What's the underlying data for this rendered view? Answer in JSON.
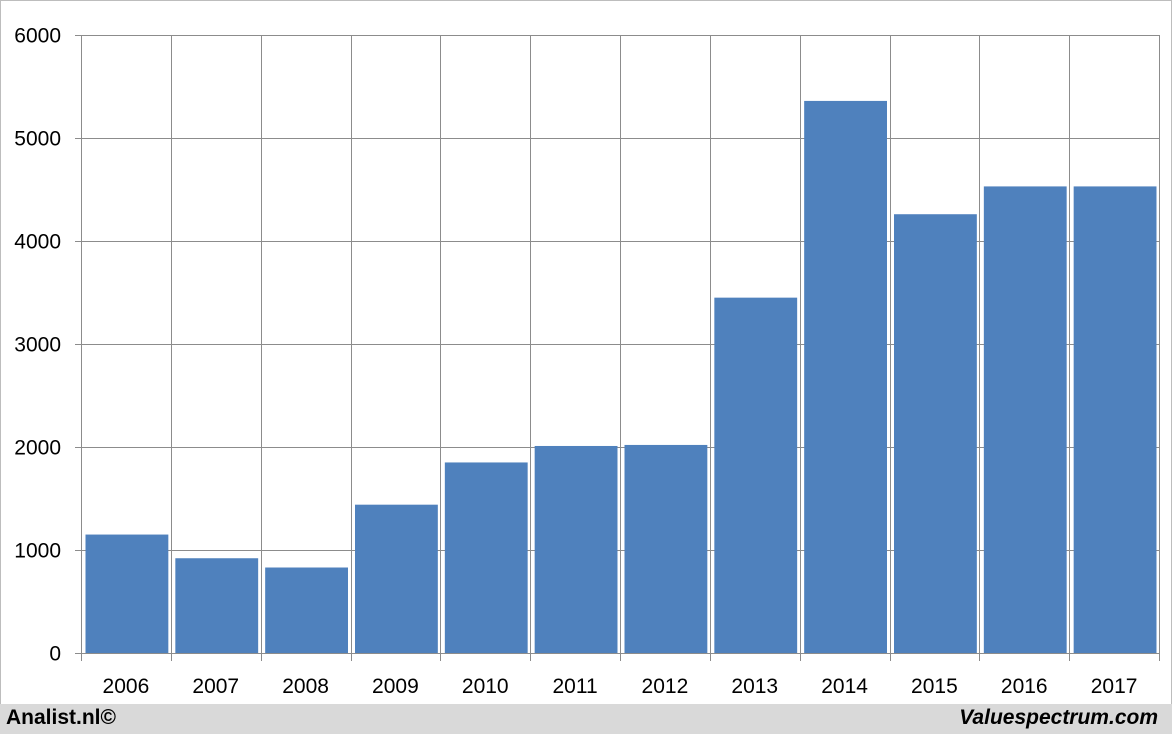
{
  "chart_data": {
    "type": "bar",
    "categories": [
      "2006",
      "2007",
      "2008",
      "2009",
      "2010",
      "2011",
      "2012",
      "2013",
      "2014",
      "2015",
      "2016",
      "2017"
    ],
    "values": [
      1150,
      920,
      830,
      1440,
      1850,
      2010,
      2020,
      3450,
      5360,
      4260,
      4530,
      4530
    ],
    "title": "",
    "xlabel": "",
    "ylabel": "",
    "ylim": [
      0,
      6000
    ],
    "yticks": [
      0,
      1000,
      2000,
      3000,
      4000,
      5000,
      6000
    ],
    "grid": true,
    "bar_color": "#4f81bd",
    "grid_color": "#8c8c8c"
  },
  "footer": {
    "left": "Analist.nl©",
    "right": "Valuespectrum.com"
  }
}
